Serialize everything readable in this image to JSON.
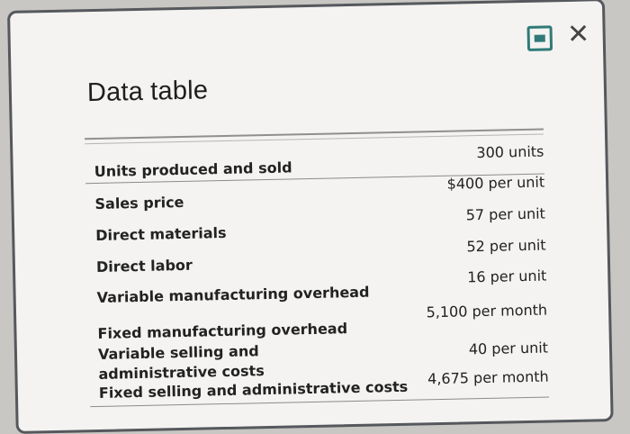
{
  "window": {
    "title": "Data table",
    "minimize_icon": "minimize-icon",
    "close_symbol": "✕"
  },
  "table": {
    "rows": [
      {
        "label": "Units produced and sold",
        "value": "300 units"
      },
      {
        "label": "Sales price",
        "value": "$400 per unit"
      },
      {
        "label": "Direct materials",
        "value": "57 per unit"
      },
      {
        "label": "Direct labor",
        "value": "52 per unit"
      },
      {
        "label": "Variable manufacturing overhead",
        "value": "16 per unit"
      },
      {
        "label": "Fixed manufacturing overhead",
        "value": "5,100 per month"
      },
      {
        "label": "Variable selling and administrative costs",
        "value": "40 per unit"
      },
      {
        "label": "Fixed selling and administrative costs",
        "value": "4,675 per month"
      }
    ]
  }
}
